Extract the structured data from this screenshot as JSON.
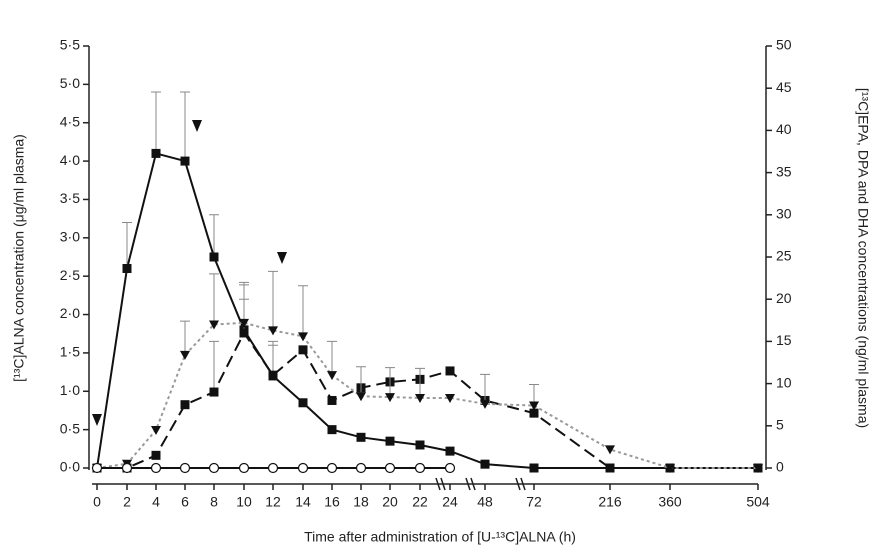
{
  "chart_data": {
    "type": "line",
    "categories": [
      "0",
      "2",
      "4",
      "6",
      "8",
      "10",
      "12",
      "14",
      "16",
      "18",
      "20",
      "22",
      "24",
      "48",
      "72",
      "216",
      "360",
      "504"
    ],
    "x_label": "Time after administration of [U-¹³C]ALNA (h)",
    "y_label": "[¹³C]ALNA concentration (μg/ml plasma)",
    "y2_label": "[¹³C]EPA, DPA and DHA concentrations (ng/ml plasma)",
    "ylim": [
      0,
      5.5
    ],
    "yticks": [
      {
        "value": 0,
        "label": "0·0"
      },
      {
        "value": 0.5,
        "label": "0·5"
      },
      {
        "value": 1,
        "label": "1·0"
      },
      {
        "value": 1.5,
        "label": "1·5"
      },
      {
        "value": 2,
        "label": "2·0"
      },
      {
        "value": 2.5,
        "label": "2·5"
      },
      {
        "value": 3,
        "label": "3·0"
      },
      {
        "value": 3.5,
        "label": "3·5"
      },
      {
        "value": 4,
        "label": "4·0"
      },
      {
        "value": 4.5,
        "label": "4·5"
      },
      {
        "value": 5,
        "label": "5·0"
      },
      {
        "value": 5.5,
        "label": "5·5"
      }
    ],
    "y2lim": [
      0,
      50
    ],
    "y2ticks": [
      0,
      5,
      10,
      15,
      20,
      25,
      30,
      35,
      40,
      45,
      50
    ],
    "series": [
      {
        "axis": "y",
        "color": "#111111",
        "line_color": "#111111",
        "marker": "square",
        "dash": "solid",
        "values": [
          0,
          2.6,
          4.1,
          4.0,
          2.75,
          1.8,
          1.2,
          0.85,
          0.5,
          0.4,
          0.35,
          0.3,
          0.22,
          0.05,
          0,
          0,
          0,
          0
        ],
        "errors": [
          null,
          0.6,
          0.8,
          0.9,
          0.55,
          0.4,
          0.4,
          null,
          null,
          null,
          null,
          null,
          null,
          null,
          null,
          null,
          null,
          null
        ]
      },
      {
        "axis": "y2",
        "color": "#111111",
        "line_color": "#111111",
        "marker": "square",
        "dash": "long",
        "values": [
          0,
          0,
          1.5,
          7.5,
          9,
          16,
          11,
          14,
          8,
          9.5,
          10.2,
          10.5,
          11.5,
          8,
          6.5,
          0,
          0,
          0
        ],
        "errors": [
          null,
          null,
          null,
          null,
          6,
          6,
          4,
          null,
          null,
          null,
          null,
          null,
          null,
          null,
          null,
          null,
          null,
          null
        ]
      },
      {
        "axis": "y2",
        "color": "#111111",
        "line_color": "#999999",
        "marker": "triangle",
        "dash": "dotted",
        "values": [
          0,
          0.5,
          4.5,
          13.4,
          17,
          17.2,
          16.3,
          15.6,
          11,
          8.5,
          8.4,
          8.3,
          8.3,
          7.6,
          7.4,
          2.2,
          0,
          0
        ],
        "errors": [
          null,
          null,
          null,
          4,
          6,
          4.5,
          7,
          6,
          4,
          3.5,
          3.5,
          3.5,
          null,
          3.5,
          2.5,
          null,
          null,
          null
        ]
      },
      {
        "axis": "y2",
        "color": "#111111",
        "line_color": "#111111",
        "marker": "circle-open",
        "dash": "solid",
        "values": [
          0,
          0,
          0,
          0,
          0,
          0,
          0,
          0,
          0,
          0,
          0,
          0,
          0,
          null,
          null,
          null,
          null,
          null
        ]
      }
    ]
  }
}
